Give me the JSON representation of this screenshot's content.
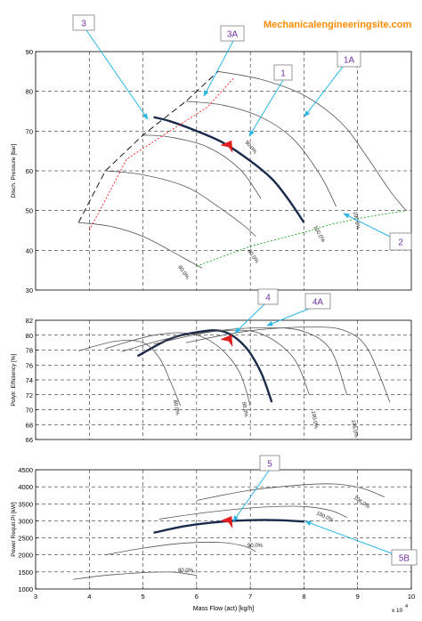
{
  "site_title": "Mechanicalengineeringsite.com",
  "colors": {
    "operating_curve": "#1a2a4a",
    "speed_lines": "#555555",
    "callout_line": "#29b6e6",
    "callout_text": "#7030a0",
    "callout_border": "#7f7f7f",
    "surge_line": "#000000",
    "surge_control_line": "#ff0000",
    "stonewall_line": "#00a000",
    "operating_point": "#e02020"
  },
  "chart_data": [
    {
      "type": "line",
      "name": "discharge-pressure",
      "ylabel": "Disch. Pressure [bar]",
      "xlim": [
        3,
        10
      ],
      "ylim": [
        30,
        90
      ],
      "yticks": [
        30,
        40,
        50,
        60,
        70,
        80,
        90
      ],
      "grid": true,
      "series": [
        {
          "role": "operating",
          "x": [
            5.2,
            5.5,
            6.0,
            6.5,
            7.0,
            7.4,
            7.7,
            8.0
          ],
          "y": [
            73.5,
            72.5,
            70.0,
            67.0,
            62.5,
            58.0,
            53.0,
            47.0
          ]
        },
        {
          "role": "speed",
          "label": "100.0%",
          "x": [
            5.8,
            6.5,
            7.2,
            7.8,
            8.3,
            8.6
          ],
          "y": [
            77.5,
            76.5,
            73.5,
            68.0,
            59.0,
            51.0
          ]
        },
        {
          "role": "speed",
          "label": "",
          "x": [
            6.4,
            7.2,
            8.0,
            8.7,
            9.2,
            9.6,
            9.9
          ],
          "y": [
            85.0,
            83.0,
            79.0,
            72.0,
            63.0,
            55.0,
            50.0
          ]
        },
        {
          "role": "speed",
          "label": "90.0%",
          "x": [
            5.0,
            5.5,
            6.2,
            6.8,
            7.2
          ],
          "y": [
            69.0,
            68.5,
            66.0,
            60.5,
            53.0
          ]
        },
        {
          "role": "speed",
          "label": "",
          "x": [
            4.3,
            5.0,
            5.8,
            6.4,
            6.9,
            7.1
          ],
          "y": [
            60.0,
            59.0,
            56.0,
            51.0,
            46.0,
            43.5
          ]
        },
        {
          "role": "speed",
          "label": "80.0%",
          "x": [
            3.8,
            4.4,
            5.0,
            5.5,
            5.9,
            6.1
          ],
          "y": [
            47.0,
            46.0,
            43.5,
            40.0,
            37.0,
            35.5
          ]
        },
        {
          "role": "surge",
          "x": [
            3.8,
            4.3,
            5.0,
            5.8,
            6.4
          ],
          "y": [
            47.0,
            60.0,
            69.0,
            77.5,
            85.0
          ]
        },
        {
          "role": "surge-control",
          "x": [
            4.0,
            4.7,
            5.5,
            6.2,
            6.7
          ],
          "y": [
            45.0,
            63.0,
            70.0,
            76.0,
            83.5
          ]
        },
        {
          "role": "stonewall",
          "x": [
            6.0,
            7.0,
            8.0,
            8.5,
            9.0,
            9.9
          ],
          "y": [
            36.0,
            41.0,
            44.5,
            46.5,
            48.0,
            50.0
          ]
        }
      ],
      "annotations": [
        "90.0%",
        "80.0%",
        "100.0%",
        "100.0%",
        "80.0%"
      ],
      "operating_point": {
        "x": 6.6,
        "y": 66.0
      }
    },
    {
      "type": "line",
      "name": "polytropic-efficiency",
      "ylabel": "Polytr. Efficiency [%]",
      "xlim": [
        3,
        10
      ],
      "ylim": [
        66,
        82
      ],
      "yticks": [
        66,
        68,
        70,
        72,
        74,
        76,
        78,
        80,
        82
      ],
      "grid": true,
      "series": [
        {
          "role": "operating",
          "x": [
            4.9,
            5.5,
            6.0,
            6.5,
            6.9,
            7.2,
            7.4
          ],
          "y": [
            77.2,
            79.5,
            80.4,
            80.5,
            78.5,
            75.0,
            71.0
          ]
        },
        {
          "role": "speed",
          "label": "80.0%",
          "x": [
            3.8,
            4.5,
            5.0,
            5.3,
            5.5,
            5.7
          ],
          "y": [
            77.9,
            79.2,
            79.0,
            77.0,
            74.0,
            70.5
          ]
        },
        {
          "role": "speed",
          "label": "90.0%",
          "x": [
            4.3,
            5.2,
            5.9,
            6.4,
            6.8,
            7.0
          ],
          "y": [
            78.2,
            80.0,
            80.2,
            78.5,
            75.0,
            70.5
          ]
        },
        {
          "role": "speed",
          "label": "",
          "x": [
            4.6,
            5.5,
            6.5,
            7.2,
            7.8,
            8.1
          ],
          "y": [
            77.8,
            79.6,
            80.6,
            80.2,
            77.0,
            72.0
          ]
        },
        {
          "role": "speed",
          "label": "100.0%",
          "x": [
            5.2,
            6.3,
            7.3,
            8.0,
            8.5,
            8.8
          ],
          "y": [
            78.8,
            80.5,
            81.0,
            80.5,
            78.0,
            72.0
          ]
        },
        {
          "role": "speed",
          "label": "106.0%",
          "x": [
            5.8,
            7.0,
            8.2,
            8.8,
            9.2,
            9.6
          ],
          "y": [
            79.0,
            80.6,
            81.1,
            80.5,
            78.0,
            71.0
          ]
        }
      ],
      "annotations": [
        "80.0%",
        "90.0%",
        "100.0%",
        "106.0%"
      ],
      "operating_point": {
        "x": 6.6,
        "y": 79.2
      }
    },
    {
      "type": "line",
      "name": "power-required",
      "xlabel": "Mass Flow (act) [kg/h]",
      "ylabel": "Power Requir.Pi [kW]",
      "x_multiplier_label": "x 10",
      "x_multiplier_exponent": "4",
      "xlim": [
        3,
        10
      ],
      "ylim": [
        1000,
        4500
      ],
      "xticks": [
        3,
        4,
        5,
        6,
        7,
        8,
        9,
        10
      ],
      "yticks": [
        1000,
        1500,
        2000,
        2500,
        3000,
        3500,
        4000,
        4500
      ],
      "grid": true,
      "series": [
        {
          "role": "operating",
          "x": [
            5.2,
            5.8,
            6.5,
            7.0,
            7.5,
            8.0
          ],
          "y": [
            2650,
            2850,
            2980,
            3020,
            3020,
            2980
          ]
        },
        {
          "role": "speed",
          "label": "106.0%",
          "x": [
            6.0,
            7.0,
            8.0,
            8.6,
            9.1,
            9.5
          ],
          "y": [
            3600,
            3900,
            4060,
            4080,
            3950,
            3700
          ]
        },
        {
          "role": "speed",
          "label": "100.0%",
          "x": [
            5.3,
            6.2,
            7.2,
            8.0,
            8.5,
            8.8
          ],
          "y": [
            3050,
            3250,
            3400,
            3420,
            3300,
            3100
          ]
        },
        {
          "role": "speed",
          "label": "90.0%",
          "x": [
            4.3,
            5.0,
            5.8,
            6.5,
            6.9,
            7.1
          ],
          "y": [
            2000,
            2200,
            2350,
            2360,
            2250,
            2100
          ]
        },
        {
          "role": "speed",
          "label": "80.0%",
          "x": [
            3.7,
            4.3,
            5.0,
            5.5,
            5.8,
            6.0
          ],
          "y": [
            1280,
            1400,
            1480,
            1500,
            1450,
            1400
          ]
        }
      ],
      "annotations": [
        "106.0%",
        "100.0%",
        "90.0%",
        "80.0%"
      ],
      "operating_point": {
        "x": 6.6,
        "y": 2950
      }
    }
  ],
  "callouts": [
    {
      "id": "c3",
      "label": "3"
    },
    {
      "id": "c3a",
      "label": "3A"
    },
    {
      "id": "c1",
      "label": "1"
    },
    {
      "id": "c1a",
      "label": "1A"
    },
    {
      "id": "c2",
      "label": "2"
    },
    {
      "id": "c4",
      "label": "4"
    },
    {
      "id": "c4a",
      "label": "4A"
    },
    {
      "id": "c5",
      "label": "5"
    },
    {
      "id": "c5b",
      "label": "5B"
    }
  ]
}
